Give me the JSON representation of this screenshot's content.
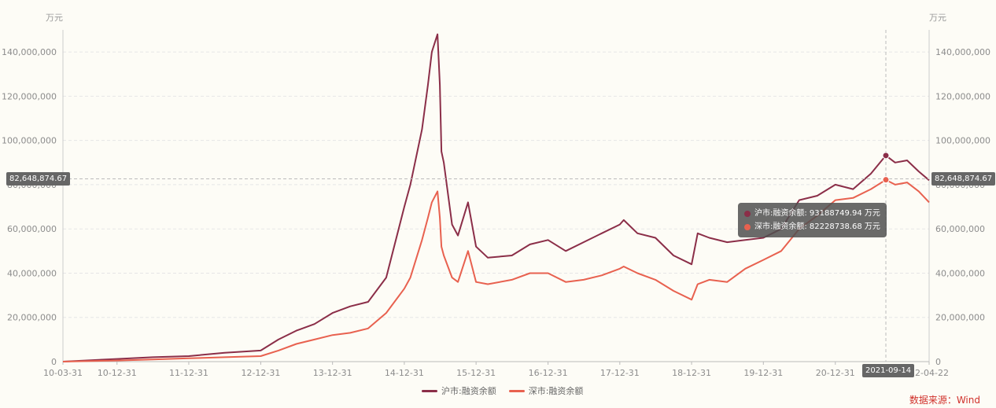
{
  "chart_data": {
    "type": "line",
    "y_unit_left": "万元",
    "y_unit_right": "万元",
    "ylim": [
      0,
      150000000
    ],
    "y_ticks": [
      0,
      20000000,
      40000000,
      60000000,
      80000000,
      100000000,
      120000000,
      140000000
    ],
    "y_tick_labels": [
      "0",
      "20,000,000",
      "40,000,000",
      "60,000,000",
      "80,000,000",
      "100,000,000",
      "120,000,000",
      "140,000,000"
    ],
    "x_range": [
      "2010-03-31",
      "2022-04-22"
    ],
    "x_tick_labels": [
      "10-03-31",
      "10-12-31",
      "11-12-31",
      "12-12-31",
      "13-12-31",
      "14-12-31",
      "15-12-31",
      "16-12-31",
      "17-12-31",
      "18-12-31",
      "19-12-31",
      "20-12-31",
      "22-04-22"
    ],
    "x_tick_dates": [
      "2010-03-31",
      "2010-12-31",
      "2011-12-31",
      "2012-12-31",
      "2013-12-31",
      "2014-12-31",
      "2015-12-31",
      "2016-12-31",
      "2017-12-31",
      "2018-12-31",
      "2019-12-31",
      "2020-12-31",
      "2022-04-22"
    ],
    "series": [
      {
        "name": "沪市:融资余额",
        "color": "#8b2e48",
        "x": [
          "2010-03-31",
          "2010-12-31",
          "2011-06-30",
          "2011-12-31",
          "2012-06-30",
          "2012-12-31",
          "2013-03-31",
          "2013-06-30",
          "2013-09-30",
          "2013-12-31",
          "2014-03-31",
          "2014-06-30",
          "2014-09-30",
          "2014-12-31",
          "2015-01-31",
          "2015-03-31",
          "2015-04-30",
          "2015-05-20",
          "2015-06-18",
          "2015-06-30",
          "2015-07-08",
          "2015-07-20",
          "2015-08-31",
          "2015-09-30",
          "2015-11-20",
          "2015-12-31",
          "2016-02-29",
          "2016-06-30",
          "2016-09-30",
          "2016-12-31",
          "2017-03-31",
          "2017-06-30",
          "2017-09-30",
          "2017-12-31",
          "2018-01-20",
          "2018-03-31",
          "2018-06-30",
          "2018-09-30",
          "2018-12-31",
          "2019-01-31",
          "2019-03-31",
          "2019-06-30",
          "2019-09-30",
          "2019-12-31",
          "2020-03-31",
          "2020-06-30",
          "2020-09-30",
          "2020-12-31",
          "2021-03-31",
          "2021-06-30",
          "2021-09-14",
          "2021-10-31",
          "2021-12-31",
          "2022-02-28",
          "2022-04-22"
        ],
        "y": [
          0,
          1200000,
          2000000,
          2500000,
          4000000,
          5000000,
          10000000,
          14000000,
          17000000,
          22000000,
          25000000,
          27000000,
          38000000,
          70000000,
          80000000,
          105000000,
          125000000,
          140000000,
          148000000,
          125000000,
          95000000,
          90000000,
          62000000,
          57000000,
          72000000,
          52000000,
          47000000,
          48000000,
          53000000,
          55000000,
          50000000,
          54000000,
          58000000,
          62000000,
          64000000,
          58000000,
          56000000,
          48000000,
          44000000,
          58000000,
          56000000,
          54000000,
          55000000,
          56000000,
          60000000,
          73000000,
          75000000,
          80000000,
          78000000,
          85000000,
          93188749.94,
          90000000,
          91000000,
          86000000,
          82000000
        ]
      },
      {
        "name": "深市:融资余额",
        "color": "#e8614f",
        "x": [
          "2010-03-31",
          "2010-12-31",
          "2011-06-30",
          "2011-12-31",
          "2012-06-30",
          "2012-12-31",
          "2013-03-31",
          "2013-06-30",
          "2013-09-30",
          "2013-12-31",
          "2014-03-31",
          "2014-06-30",
          "2014-09-30",
          "2014-12-31",
          "2015-01-31",
          "2015-03-31",
          "2015-04-30",
          "2015-05-20",
          "2015-06-18",
          "2015-06-30",
          "2015-07-08",
          "2015-07-20",
          "2015-08-31",
          "2015-09-30",
          "2015-11-20",
          "2015-12-31",
          "2016-02-29",
          "2016-06-30",
          "2016-09-30",
          "2016-12-31",
          "2017-03-31",
          "2017-06-30",
          "2017-09-30",
          "2017-12-31",
          "2018-01-20",
          "2018-03-31",
          "2018-06-30",
          "2018-09-30",
          "2018-12-31",
          "2019-01-31",
          "2019-03-31",
          "2019-06-30",
          "2019-09-30",
          "2019-12-31",
          "2020-03-31",
          "2020-06-30",
          "2020-09-30",
          "2020-12-31",
          "2021-03-31",
          "2021-06-30",
          "2021-09-14",
          "2021-10-31",
          "2021-12-31",
          "2022-02-28",
          "2022-04-22"
        ],
        "y": [
          0,
          500000,
          1000000,
          1500000,
          2000000,
          2500000,
          5000000,
          8000000,
          10000000,
          12000000,
          13000000,
          15000000,
          22000000,
          33000000,
          38000000,
          55000000,
          65000000,
          72000000,
          77000000,
          65000000,
          52000000,
          48000000,
          38000000,
          36000000,
          50000000,
          36000000,
          35000000,
          37000000,
          40000000,
          40000000,
          36000000,
          37000000,
          39000000,
          42000000,
          43000000,
          40000000,
          37000000,
          32000000,
          28000000,
          35000000,
          37000000,
          36000000,
          42000000,
          46000000,
          50000000,
          60000000,
          66000000,
          73000000,
          74000000,
          78000000,
          82228738.68,
          80000000,
          81000000,
          77000000,
          72000000
        ]
      }
    ],
    "crosshair_value_label": "82,648,874.67",
    "crosshair_date_label": "2021-09-14",
    "crosshair_date": "2021-09-14",
    "crosshair_value": 82648874.67,
    "tooltip": [
      {
        "label": "沪市:融资余额: 93188749.94  万元",
        "color": "#8b2e48"
      },
      {
        "label": "深市:融资余额: 82228738.68  万元",
        "color": "#e8614f"
      }
    ],
    "legend": [
      "沪市:融资余额",
      "深市:融资余额"
    ],
    "legend_position": "bottom-center",
    "grid": true,
    "source": "数据来源：Wind"
  }
}
